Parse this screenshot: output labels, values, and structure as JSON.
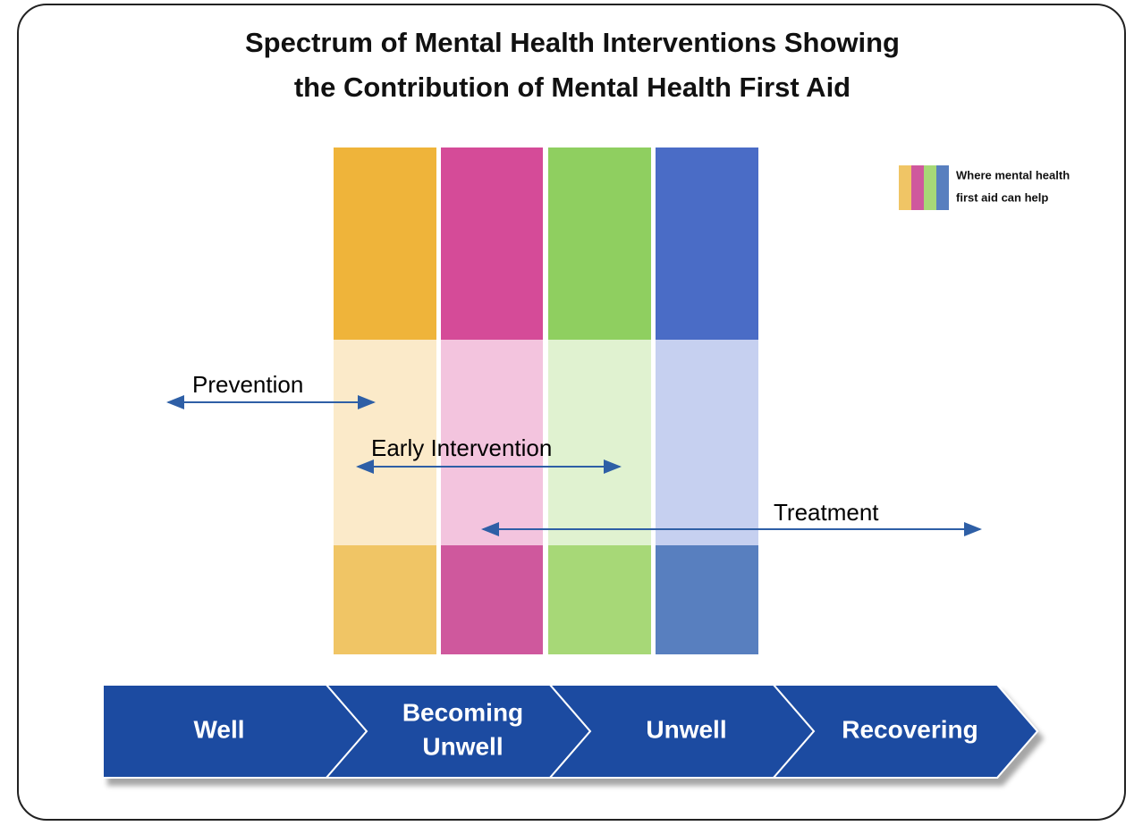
{
  "title": {
    "lines": [
      "Spectrum of Mental Health Interventions Showing",
      "the Contribution of Mental Health First Aid"
    ]
  },
  "legend": {
    "lines": [
      "Where mental health",
      "first aid can help"
    ]
  },
  "interventions": [
    "Prevention",
    "Early Intervention",
    "Treatment"
  ],
  "stages": [
    {
      "lines": [
        "Well"
      ]
    },
    {
      "lines": [
        "Becoming",
        "Unwell"
      ]
    },
    {
      "lines": [
        "Unwell"
      ]
    },
    {
      "lines": [
        "Recovering"
      ]
    }
  ]
}
